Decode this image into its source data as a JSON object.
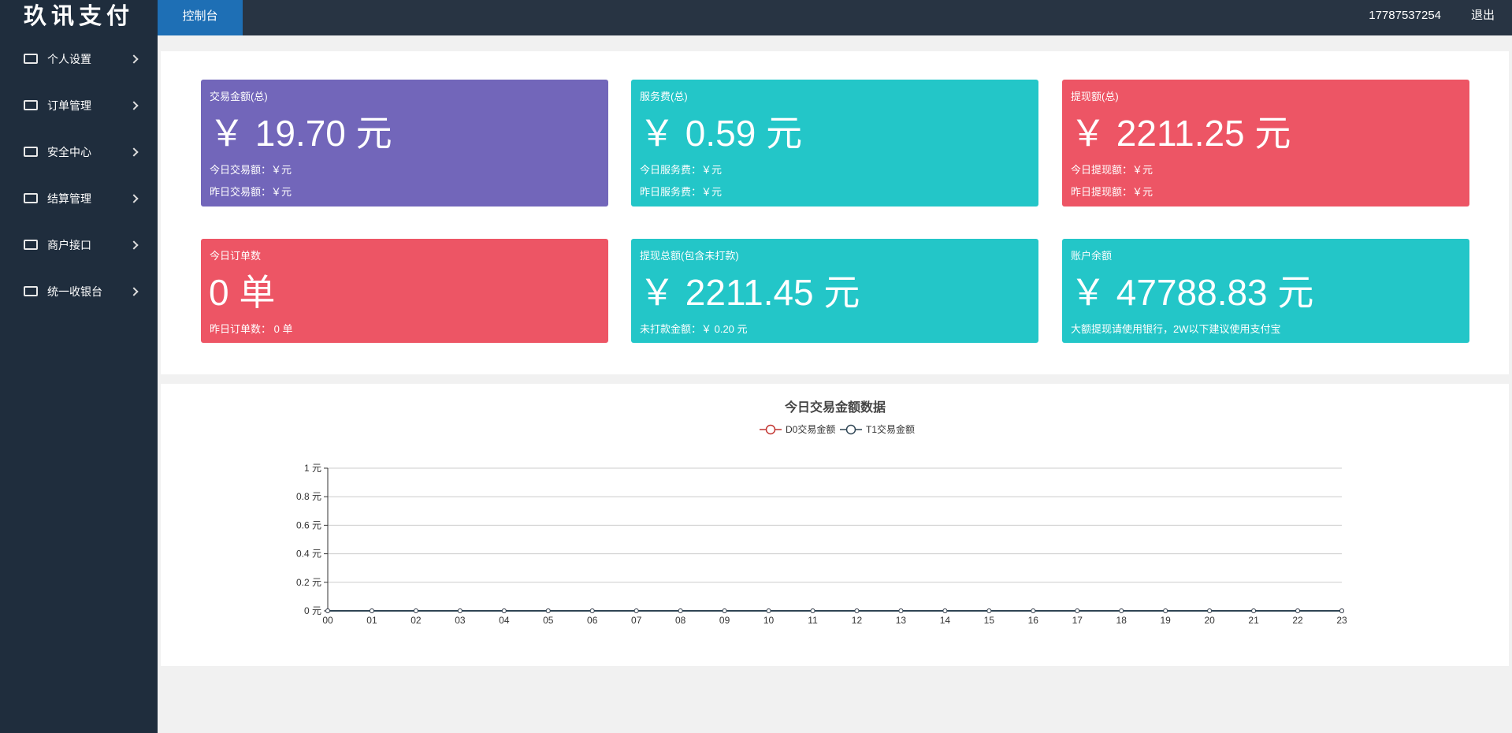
{
  "header": {
    "logo": "玖讯支付",
    "tab": "控制台",
    "user": "17787537254",
    "logout": "退出"
  },
  "sidebar": {
    "items": [
      "个人设置",
      "订单管理",
      "安全中心",
      "结算管理",
      "商户接口",
      "统一收银台"
    ]
  },
  "cards": [
    {
      "title": "交易金额(总)",
      "amount": "￥ 19.70 元",
      "lines": [
        "今日交易额：￥元",
        "昨日交易额：￥元"
      ],
      "color": "#7266ba"
    },
    {
      "title": "服务费(总)",
      "amount": "￥ 0.59 元",
      "lines": [
        "今日服务费：￥元",
        "昨日服务费：￥元"
      ],
      "color": "#23c6c8"
    },
    {
      "title": "提现额(总)",
      "amount": "￥ 2211.25 元",
      "lines": [
        "今日提现额：￥元",
        "昨日提现额：￥元"
      ],
      "color": "#ed5565"
    },
    {
      "title": "今日订单数",
      "amount": "0 单",
      "lines": [
        "昨日订单数： 0 单"
      ],
      "color": "#ed5565"
    },
    {
      "title": "提现总额(包含未打款)",
      "amount": "￥ 2211.45 元",
      "lines": [
        "未打款金额：￥ 0.20 元"
      ],
      "color": "#23c6c8"
    },
    {
      "title": "账户余额",
      "amount": "￥ 47788.83 元",
      "lines": [
        "大额提现请使用银行，2W以下建议使用支付宝"
      ],
      "color": "#23c6c8"
    }
  ],
  "chart_data": {
    "type": "line",
    "title": "今日交易金额数据",
    "categories": [
      "00",
      "01",
      "02",
      "03",
      "04",
      "05",
      "06",
      "07",
      "08",
      "09",
      "10",
      "11",
      "12",
      "13",
      "14",
      "15",
      "16",
      "17",
      "18",
      "19",
      "20",
      "21",
      "22",
      "23"
    ],
    "series": [
      {
        "name": "D0交易金额",
        "color": "#c23531",
        "values": [
          0,
          0,
          0,
          0,
          0,
          0,
          0,
          0,
          0,
          0,
          0,
          0,
          0,
          0,
          0,
          0,
          0,
          0,
          0,
          0,
          0,
          0,
          0,
          0
        ]
      },
      {
        "name": "T1交易金额",
        "color": "#2f4554",
        "values": [
          0,
          0,
          0,
          0,
          0,
          0,
          0,
          0,
          0,
          0,
          0,
          0,
          0,
          0,
          0,
          0,
          0,
          0,
          0,
          0,
          0,
          0,
          0,
          0
        ]
      }
    ],
    "ylim": [
      0,
      1
    ],
    "yticks": [
      {
        "value": 0,
        "label": "0 元"
      },
      {
        "value": 0.2,
        "label": "0.2 元"
      },
      {
        "value": 0.4,
        "label": "0.4 元"
      },
      {
        "value": 0.6,
        "label": "0.6 元"
      },
      {
        "value": 0.8,
        "label": "0.8 元"
      },
      {
        "value": 1,
        "label": "1 元"
      }
    ],
    "grid": true
  }
}
